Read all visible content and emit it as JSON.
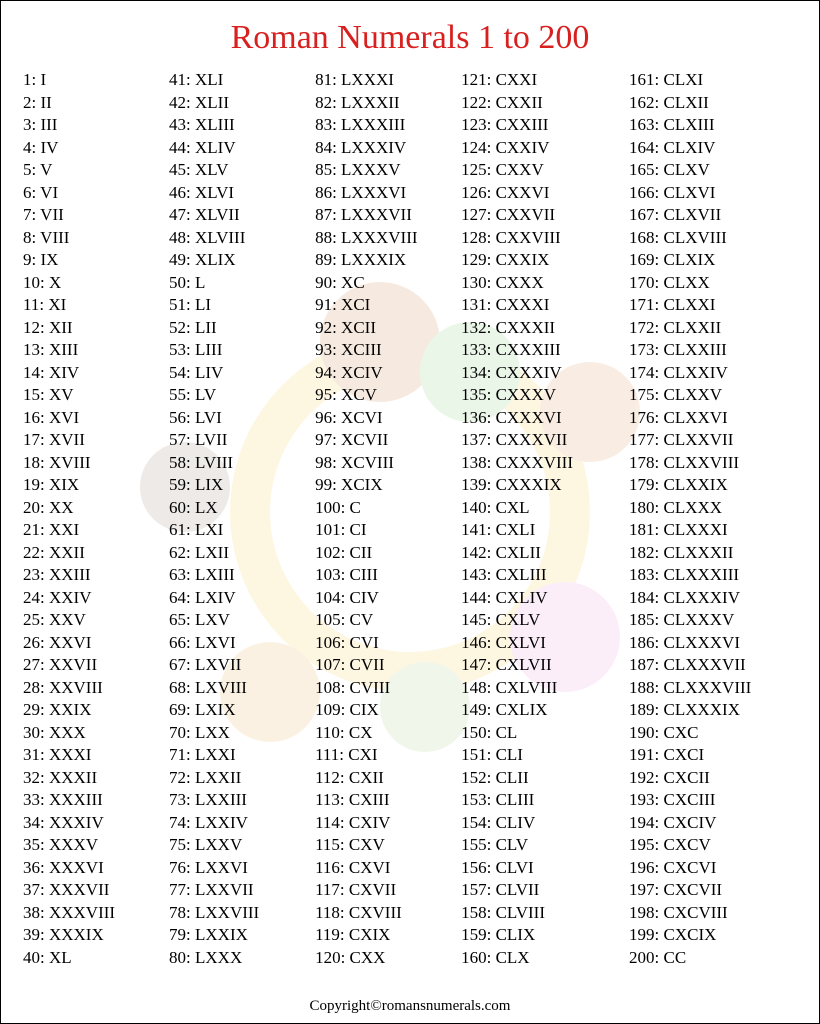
{
  "title": "Roman Numerals 1 to 200",
  "footer": "Copyright©romansnumerals.com",
  "title_color": "#d82020",
  "text_color": "#000000",
  "background_color": "#ffffff",
  "font_family": "Times New Roman",
  "title_fontsize": 34,
  "entry_fontsize": 17,
  "line_height": 22.5,
  "columns_count": 5,
  "rows_per_column": 40,
  "decoration": {
    "opacity": 0.15,
    "ring_color": "#f5c93d",
    "blob_colors": [
      "#c97a3a",
      "#7ac96a",
      "#e890d8",
      "#e8a84a",
      "#8a7a6a",
      "#d88a4a",
      "#a8c97a"
    ]
  },
  "entries": [
    [
      "1: I",
      "2: II",
      "3: III",
      "4: IV",
      "5: V",
      "6: VI",
      "7: VII",
      "8: VIII",
      "9: IX",
      "10: X",
      "11: XI",
      "12: XII",
      "13: XIII",
      "14: XIV",
      "15: XV",
      "16: XVI",
      "17: XVII",
      "18: XVIII",
      "19: XIX",
      "20: XX",
      "21: XXI",
      "22: XXII",
      "23: XXIII",
      "24: XXIV",
      "25: XXV",
      "26: XXVI",
      "27: XXVII",
      "28: XXVIII",
      "29: XXIX",
      "30: XXX",
      "31: XXXI",
      "32: XXXII",
      "33: XXXIII",
      "34: XXXIV",
      "35: XXXV",
      "36: XXXVI",
      "37: XXXVII",
      "38: XXXVIII",
      "39: XXXIX",
      "40: XL"
    ],
    [
      "41: XLI",
      "42: XLII",
      "43: XLIII",
      "44: XLIV",
      "45: XLV",
      "46: XLVI",
      "47: XLVII",
      "48: XLVIII",
      "49: XLIX",
      "50: L",
      "51: LI",
      "52: LII",
      "53: LIII",
      "54: LIV",
      "55: LV",
      "56: LVI",
      "57: LVII",
      "58: LVIII",
      "59: LIX",
      "60: LX",
      "61: LXI",
      "62: LXII",
      "63: LXIII",
      "64: LXIV",
      "65: LXV",
      "66: LXVI",
      "67: LXVII",
      "68: LXVIII",
      "69: LXIX",
      "70: LXX",
      "71: LXXI",
      "72: LXXII",
      "73: LXXIII",
      "74: LXXIV",
      "75: LXXV",
      "76: LXXVI",
      "77: LXXVII",
      "78: LXXVIII",
      "79: LXXIX",
      "80: LXXX"
    ],
    [
      "81: LXXXI",
      "82: LXXXII",
      "83: LXXXIII",
      "84: LXXXIV",
      "85: LXXXV",
      "86: LXXXVI",
      "87: LXXXVII",
      "88: LXXXVIII",
      "89: LXXXIX",
      "90: XC",
      "91: XCI",
      "92: XCII",
      "93: XCIII",
      "94: XCIV",
      "95: XCV",
      "96: XCVI",
      "97: XCVII",
      "98: XCVIII",
      "99: XCIX",
      "100: C",
      "101: CI",
      "102: CII",
      "103: CIII",
      "104: CIV",
      "105: CV",
      "106: CVI",
      "107: CVII",
      "108: CVIII",
      "109: CIX",
      "110: CX",
      "111: CXI",
      "112: CXII",
      "113: CXIII",
      "114: CXIV",
      "115: CXV",
      "116: CXVI",
      "117: CXVII",
      "118: CXVIII",
      "119: CXIX",
      "120: CXX"
    ],
    [
      "121: CXXI",
      "122: CXXII",
      "123: CXXIII",
      "124: CXXIV",
      "125: CXXV",
      "126: CXXVI",
      "127: CXXVII",
      "128: CXXVIII",
      "129: CXXIX",
      "130: CXXX",
      "131: CXXXI",
      "132: CXXXII",
      "133: CXXXIII",
      "134: CXXXIV",
      "135: CXXXV",
      "136: CXXXVI",
      "137: CXXXVII",
      "138: CXXXVIII",
      "139: CXXXIX",
      "140: CXL",
      "141: CXLI",
      "142: CXLII",
      "143: CXLIII",
      "144: CXLIV",
      "145: CXLV",
      "146: CXLVI",
      "147: CXLVII",
      "148: CXLVIII",
      "149: CXLIX",
      "150: CL",
      "151: CLI",
      "152: CLII",
      "153: CLIII",
      "154: CLIV",
      "155: CLV",
      "156: CLVI",
      "157: CLVII",
      "158: CLVIII",
      "159: CLIX",
      "160: CLX"
    ],
    [
      "161: CLXI",
      "162: CLXII",
      "163: CLXIII",
      "164: CLXIV",
      "165: CLXV",
      "166: CLXVI",
      "167: CLXVII",
      "168: CLXVIII",
      "169: CLXIX",
      "170: CLXX",
      "171: CLXXI",
      "172: CLXXII",
      "173: CLXXIII",
      "174: CLXXIV",
      "175: CLXXV",
      "176: CLXXVI",
      "177: CLXXVII",
      "178: CLXXVIII",
      "179: CLXXIX",
      "180: CLXXX",
      "181: CLXXXI",
      "182: CLXXXII",
      "183: CLXXXIII",
      "184: CLXXXIV",
      "185: CLXXXV",
      "186: CLXXXVI",
      "187: CLXXXVII",
      "188: CLXXXVIII",
      "189: CLXXXIX",
      "190: CXC",
      "191: CXCI",
      "192: CXCII",
      "193: CXCIII",
      "194: CXCIV",
      "195: CXCV",
      "196: CXCVI",
      "197: CXCVII",
      "198: CXCVIII",
      "199: CXCIX",
      "200: CC"
    ]
  ]
}
